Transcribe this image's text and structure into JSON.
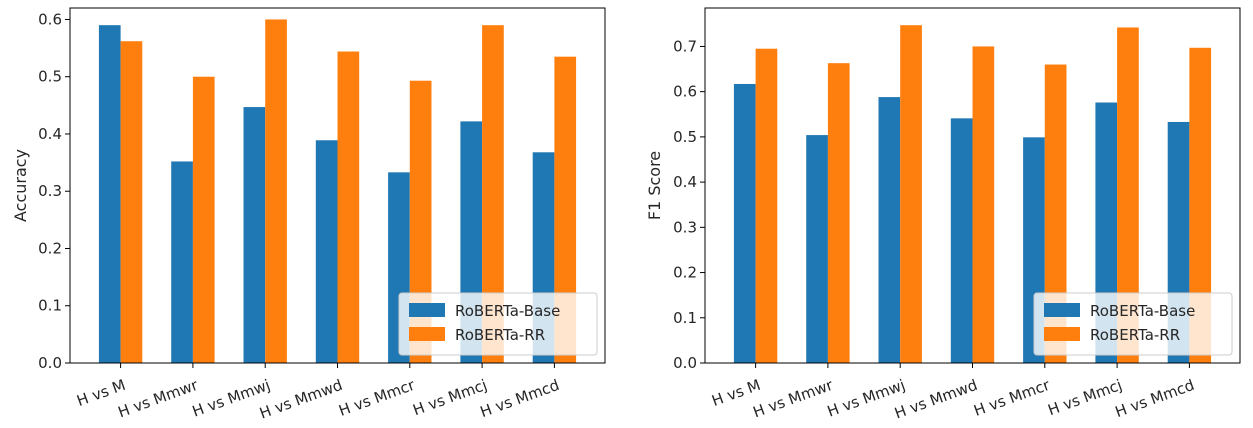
{
  "colors": {
    "base": "#1f77b4",
    "rr": "#ff7f0e"
  },
  "chart_data": [
    {
      "type": "bar",
      "title": "",
      "xlabel": "",
      "ylabel": "Accuracy",
      "ylim": [
        0,
        0.62
      ],
      "yticks": [
        "0.0",
        "0.1",
        "0.2",
        "0.3",
        "0.4",
        "0.5",
        "0.6"
      ],
      "categories": [
        "H vs M",
        "H vs Mmwr",
        "H vs Mmwj",
        "H vs Mmwd",
        "H vs Mmcr",
        "H vs Mmcj",
        "H vs Mmcd"
      ],
      "legend": "lower right",
      "grid": false,
      "series": [
        {
          "name": "RoBERTa-Base",
          "values": [
            0.59,
            0.352,
            0.447,
            0.389,
            0.333,
            0.422,
            0.368
          ]
        },
        {
          "name": "RoBERTa-RR",
          "values": [
            0.562,
            0.5,
            0.6,
            0.544,
            0.493,
            0.59,
            0.535
          ]
        }
      ]
    },
    {
      "type": "bar",
      "title": "",
      "xlabel": "",
      "ylabel": "F1 Score",
      "ylim": [
        0,
        0.785
      ],
      "yticks": [
        "0.0",
        "0.1",
        "0.2",
        "0.3",
        "0.4",
        "0.5",
        "0.6",
        "0.7"
      ],
      "categories": [
        "H vs M",
        "H vs Mmwr",
        "H vs Mmwj",
        "H vs Mmwd",
        "H vs Mmcr",
        "H vs Mmcj",
        "H vs Mmcd"
      ],
      "legend": "lower right",
      "grid": false,
      "series": [
        {
          "name": "RoBERTa-Base",
          "values": [
            0.617,
            0.504,
            0.588,
            0.541,
            0.499,
            0.576,
            0.533
          ]
        },
        {
          "name": "RoBERTa-RR",
          "values": [
            0.695,
            0.663,
            0.747,
            0.7,
            0.66,
            0.742,
            0.697
          ]
        }
      ]
    }
  ]
}
